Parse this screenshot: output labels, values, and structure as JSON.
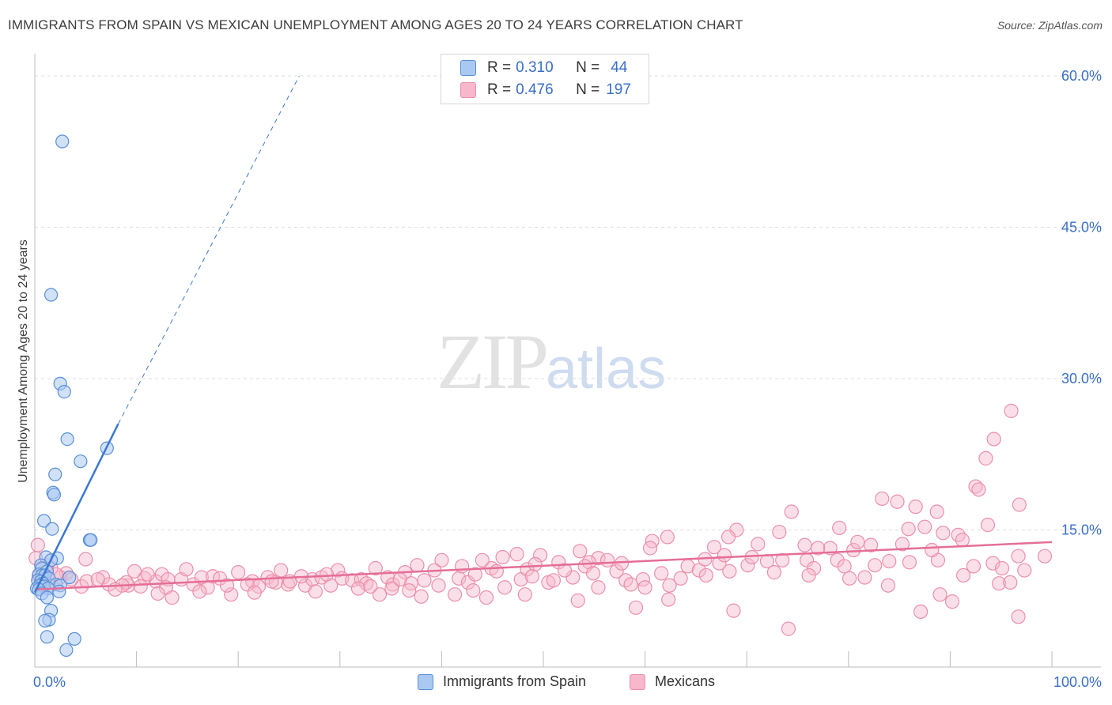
{
  "title": "IMMIGRANTS FROM SPAIN VS MEXICAN UNEMPLOYMENT AMONG AGES 20 TO 24 YEARS CORRELATION CHART",
  "source": "Source: ZipAtlas.com",
  "watermark": {
    "zip": "ZIP",
    "atlas": "atlas"
  },
  "legend": {
    "rows": [
      {
        "r_label": "R =",
        "r_value": "0.310",
        "n_label": "N =",
        "n_value": "44",
        "color": "#a9c8f2"
      },
      {
        "r_label": "R =",
        "r_value": "0.476",
        "n_label": "N =",
        "n_value": "197",
        "color": "#f7b8cc"
      }
    ]
  },
  "bottom_legend": {
    "items": [
      {
        "label": "Immigrants from Spain",
        "color": "#a9c8f2"
      },
      {
        "label": "Mexicans",
        "color": "#f7b8cc"
      }
    ]
  },
  "chart_data": {
    "type": "scatter",
    "title": "IMMIGRANTS FROM SPAIN VS MEXICAN UNEMPLOYMENT AMONG AGES 20 TO 24 YEARS CORRELATION CHART",
    "xlabel": "",
    "ylabel": "Unemployment Among Ages 20 to 24 years",
    "xlim": [
      0,
      100
    ],
    "ylim": [
      0,
      60
    ],
    "x_tick_labels": [
      "0.0%",
      "100.0%"
    ],
    "y_ticks": [
      15,
      30,
      45,
      60
    ],
    "y_tick_labels": [
      "15.0%",
      "30.0%",
      "45.0%",
      "60.0%"
    ],
    "grid": "horizontal dashed",
    "colors": {
      "spain_fill": "#a9c8f2",
      "spain_stroke": "#5b8fd6",
      "spain_line": "#3b78d1",
      "mex_fill": "#f7b8cc",
      "mex_stroke": "#eb8fab",
      "mex_line": "#e46e97",
      "tick_label": "#3a6fc4"
    },
    "series": [
      {
        "name": "Immigrants from Spain",
        "trend": {
          "x": [
            0,
            8.2
          ],
          "y": [
            8.8,
            25.5
          ],
          "dashed_to": [
            26,
            60
          ]
        },
        "points": [
          [
            2.7,
            53.5
          ],
          [
            1.6,
            38.3
          ],
          [
            2.5,
            29.5
          ],
          [
            2.9,
            28.7
          ],
          [
            3.2,
            24.0
          ],
          [
            7.1,
            23.1
          ],
          [
            4.5,
            21.8
          ],
          [
            2.0,
            20.5
          ],
          [
            1.8,
            18.7
          ],
          [
            1.9,
            18.5
          ],
          [
            0.9,
            15.9
          ],
          [
            1.7,
            15.1
          ],
          [
            5.4,
            14.0
          ],
          [
            5.5,
            14.0
          ],
          [
            1.1,
            12.3
          ],
          [
            2.2,
            12.2
          ],
          [
            1.6,
            12.0
          ],
          [
            0.6,
            11.5
          ],
          [
            0.7,
            11.2
          ],
          [
            1.2,
            10.9
          ],
          [
            0.4,
            10.6
          ],
          [
            0.7,
            10.5
          ],
          [
            1.0,
            10.5
          ],
          [
            3.4,
            10.3
          ],
          [
            1.4,
            10.2
          ],
          [
            0.3,
            10.0
          ],
          [
            0.6,
            9.9
          ],
          [
            0.8,
            9.7
          ],
          [
            2.1,
            9.6
          ],
          [
            0.5,
            9.5
          ],
          [
            2.5,
            9.5
          ],
          [
            0.9,
            9.4
          ],
          [
            0.2,
            9.2
          ],
          [
            1.3,
            9.2
          ],
          [
            0.4,
            9.1
          ],
          [
            2.4,
            8.9
          ],
          [
            0.7,
            8.7
          ],
          [
            1.2,
            8.3
          ],
          [
            1.6,
            7.0
          ],
          [
            1.4,
            6.1
          ],
          [
            1.0,
            6.0
          ],
          [
            1.2,
            4.4
          ],
          [
            3.9,
            4.2
          ],
          [
            3.1,
            3.1
          ]
        ]
      },
      {
        "name": "Mexicans",
        "trend": {
          "x": [
            0,
            100
          ],
          "y": [
            9.1,
            13.8
          ]
        },
        "points": [
          [
            96.0,
            26.8
          ],
          [
            94.3,
            24.0
          ],
          [
            93.5,
            22.1
          ],
          [
            92.5,
            19.3
          ],
          [
            92.8,
            19.0
          ],
          [
            83.3,
            18.1
          ],
          [
            84.8,
            17.8
          ],
          [
            86.6,
            17.3
          ],
          [
            96.8,
            17.5
          ],
          [
            74.4,
            16.8
          ],
          [
            88.7,
            16.8
          ],
          [
            93.7,
            15.5
          ],
          [
            85.9,
            15.1
          ],
          [
            87.5,
            15.3
          ],
          [
            79.1,
            15.2
          ],
          [
            73.2,
            14.8
          ],
          [
            75.7,
            13.5
          ],
          [
            78.2,
            13.2
          ],
          [
            80.5,
            13.0
          ],
          [
            80.9,
            13.8
          ],
          [
            77.0,
            13.2
          ],
          [
            69.0,
            15.0
          ],
          [
            68.2,
            14.3
          ],
          [
            66.8,
            13.3
          ],
          [
            62.2,
            14.3
          ],
          [
            60.7,
            13.9
          ],
          [
            60.5,
            13.2
          ],
          [
            55.4,
            12.2
          ],
          [
            54.5,
            11.8
          ],
          [
            53.6,
            12.9
          ],
          [
            51.5,
            11.8
          ],
          [
            47.4,
            12.6
          ],
          [
            46.0,
            12.3
          ],
          [
            49.7,
            12.5
          ],
          [
            56.3,
            12.0
          ],
          [
            71.1,
            13.6
          ],
          [
            82.2,
            13.5
          ],
          [
            84.0,
            11.9
          ],
          [
            88.8,
            12.0
          ],
          [
            90.8,
            14.5
          ],
          [
            89.3,
            14.7
          ],
          [
            91.2,
            14.0
          ],
          [
            94.2,
            11.7
          ],
          [
            96.7,
            12.4
          ],
          [
            99.3,
            12.4
          ],
          [
            94.8,
            9.7
          ],
          [
            96.7,
            6.4
          ],
          [
            90.2,
            7.9
          ],
          [
            89.0,
            8.6
          ],
          [
            87.1,
            6.9
          ],
          [
            74.1,
            5.2
          ],
          [
            68.7,
            7.0
          ],
          [
            62.3,
            8.1
          ],
          [
            59.1,
            7.3
          ],
          [
            53.4,
            8.0
          ],
          [
            44.4,
            8.3
          ],
          [
            41.3,
            8.6
          ],
          [
            38.0,
            8.4
          ],
          [
            33.9,
            8.6
          ],
          [
            29.1,
            9.5
          ],
          [
            24.9,
            9.6
          ],
          [
            19.3,
            8.6
          ],
          [
            13.5,
            8.3
          ],
          [
            9.2,
            9.5
          ],
          [
            5.0,
            12.1
          ],
          [
            3.1,
            10.7
          ],
          [
            2.5,
            10.3
          ],
          [
            1.6,
            11.2
          ],
          [
            0.3,
            13.5
          ],
          [
            0.1,
            12.2
          ],
          [
            0.4,
            10.4
          ],
          [
            0.9,
            10.0
          ],
          [
            1.4,
            9.5
          ],
          [
            1.2,
            11.5
          ],
          [
            2.1,
            10.6
          ],
          [
            4.6,
            9.4
          ],
          [
            5.1,
            9.9
          ],
          [
            6.7,
            10.3
          ],
          [
            7.3,
            9.6
          ],
          [
            9.0,
            9.8
          ],
          [
            9.8,
            10.9
          ],
          [
            10.8,
            10.2
          ],
          [
            11.9,
            9.9
          ],
          [
            12.5,
            10.6
          ],
          [
            13.1,
            10.1
          ],
          [
            14.4,
            10.1
          ],
          [
            15.6,
            9.6
          ],
          [
            16.4,
            10.3
          ],
          [
            17.5,
            10.4
          ],
          [
            18.2,
            10.2
          ],
          [
            18.9,
            9.5
          ],
          [
            20.0,
            10.8
          ],
          [
            21.4,
            9.9
          ],
          [
            22.0,
            9.4
          ],
          [
            22.9,
            10.3
          ],
          [
            23.7,
            9.8
          ],
          [
            24.2,
            11.0
          ],
          [
            25.1,
            9.9
          ],
          [
            26.6,
            9.5
          ],
          [
            27.3,
            10.1
          ],
          [
            28.2,
            10.3
          ],
          [
            29.8,
            11.0
          ],
          [
            30.2,
            10.2
          ],
          [
            31.2,
            10.0
          ],
          [
            32.1,
            10.1
          ],
          [
            32.6,
            9.7
          ],
          [
            33.5,
            11.2
          ],
          [
            34.7,
            10.3
          ],
          [
            35.2,
            9.6
          ],
          [
            36.4,
            10.8
          ],
          [
            37.0,
            9.7
          ],
          [
            37.6,
            11.5
          ],
          [
            38.3,
            10.0
          ],
          [
            39.3,
            11.0
          ],
          [
            40.0,
            12.0
          ],
          [
            41.7,
            10.2
          ],
          [
            42.0,
            11.4
          ],
          [
            42.6,
            9.8
          ],
          [
            43.3,
            10.6
          ],
          [
            44.9,
            11.2
          ],
          [
            46.2,
            9.3
          ],
          [
            47.8,
            10.1
          ],
          [
            48.4,
            11.1
          ],
          [
            49.2,
            11.6
          ],
          [
            50.5,
            9.8
          ],
          [
            51.0,
            10.0
          ],
          [
            52.9,
            10.3
          ],
          [
            54.1,
            11.4
          ],
          [
            55.4,
            9.3
          ],
          [
            57.2,
            10.9
          ],
          [
            58.1,
            10.0
          ],
          [
            58.6,
            9.6
          ],
          [
            59.8,
            10.1
          ],
          [
            61.6,
            10.7
          ],
          [
            62.4,
            9.5
          ],
          [
            63.5,
            10.2
          ],
          [
            64.2,
            11.4
          ],
          [
            65.3,
            11.0
          ],
          [
            66.0,
            10.5
          ],
          [
            67.3,
            11.7
          ],
          [
            67.8,
            12.5
          ],
          [
            70.1,
            11.5
          ],
          [
            72.7,
            10.8
          ],
          [
            73.5,
            12.0
          ],
          [
            75.9,
            12.0
          ],
          [
            76.6,
            11.2
          ],
          [
            78.9,
            12.0
          ],
          [
            79.6,
            11.4
          ],
          [
            80.1,
            10.2
          ],
          [
            82.6,
            11.5
          ],
          [
            85.3,
            13.6
          ],
          [
            86.0,
            11.8
          ],
          [
            88.2,
            13.0
          ],
          [
            91.3,
            10.5
          ],
          [
            92.3,
            11.4
          ],
          [
            95.1,
            11.2
          ],
          [
            97.3,
            11.0
          ],
          [
            72.0,
            11.9
          ],
          [
            70.5,
            12.3
          ],
          [
            65.9,
            12.1
          ],
          [
            57.7,
            11.7
          ],
          [
            52.1,
            11.0
          ],
          [
            48.9,
            10.4
          ],
          [
            45.4,
            10.9
          ],
          [
            44.0,
            12.0
          ],
          [
            39.7,
            9.5
          ],
          [
            35.9,
            10.1
          ],
          [
            31.8,
            9.2
          ],
          [
            28.7,
            10.6
          ],
          [
            26.2,
            10.4
          ],
          [
            23.3,
            9.9
          ],
          [
            20.9,
            9.6
          ],
          [
            17.0,
            9.3
          ],
          [
            14.9,
            11.1
          ],
          [
            12.9,
            9.3
          ],
          [
            11.1,
            10.6
          ],
          [
            8.6,
            9.5
          ],
          [
            6.2,
            10.1
          ],
          [
            7.9,
            9.1
          ],
          [
            10.4,
            9.4
          ],
          [
            16.2,
            8.9
          ],
          [
            21.6,
            8.8
          ],
          [
            27.6,
            8.9
          ],
          [
            33.0,
            9.4
          ],
          [
            36.8,
            9.0
          ],
          [
            43.1,
            9.0
          ],
          [
            60.0,
            9.3
          ],
          [
            76.1,
            10.5
          ],
          [
            81.6,
            10.3
          ],
          [
            83.9,
            9.5
          ],
          [
            95.9,
            9.8
          ],
          [
            3.6,
            10.1
          ],
          [
            12.1,
            8.7
          ],
          [
            35.1,
            9.2
          ],
          [
            48.2,
            8.6
          ],
          [
            54.9,
            10.7
          ],
          [
            68.3,
            10.9
          ]
        ]
      }
    ]
  }
}
